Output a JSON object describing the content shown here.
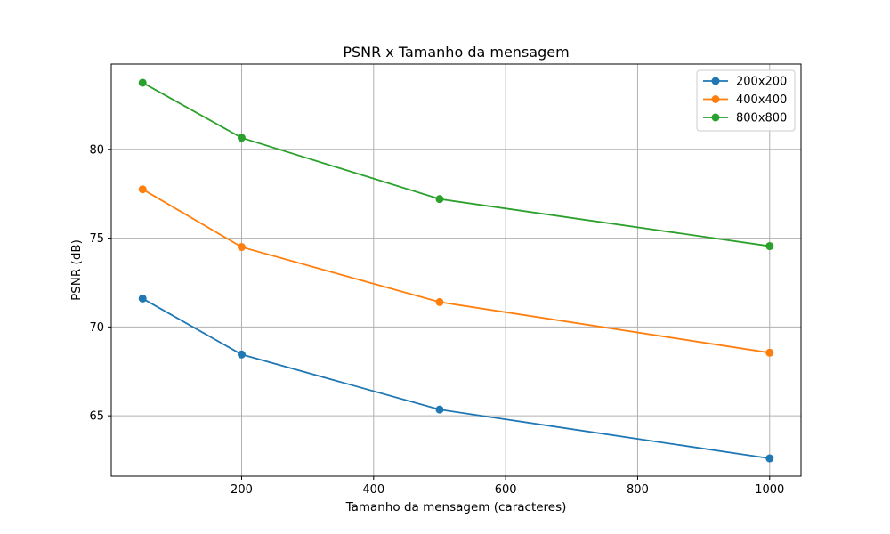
{
  "chart_data": {
    "type": "line",
    "title": "PSNR x Tamanho da mensagem",
    "xlabel": "Tamanho da mensagem (caracteres)",
    "ylabel": "PSNR (dB)",
    "x": [
      50,
      200,
      500,
      1000
    ],
    "xlim": [
      2.5,
      1047.5
    ],
    "ylim": [
      61.6,
      84.8
    ],
    "xticks": [
      200,
      400,
      600,
      800,
      1000
    ],
    "yticks": [
      65,
      70,
      75,
      80
    ],
    "grid": true,
    "legend_position": "top-right",
    "series": [
      {
        "name": "200x200",
        "color": "#1f77b4",
        "values": [
          71.6,
          68.45,
          65.35,
          62.6
        ]
      },
      {
        "name": "400x400",
        "color": "#ff7f0e",
        "values": [
          77.75,
          74.5,
          71.4,
          68.55
        ]
      },
      {
        "name": "800x800",
        "color": "#2ca02c",
        "values": [
          83.75,
          80.65,
          77.2,
          74.55
        ]
      }
    ]
  }
}
